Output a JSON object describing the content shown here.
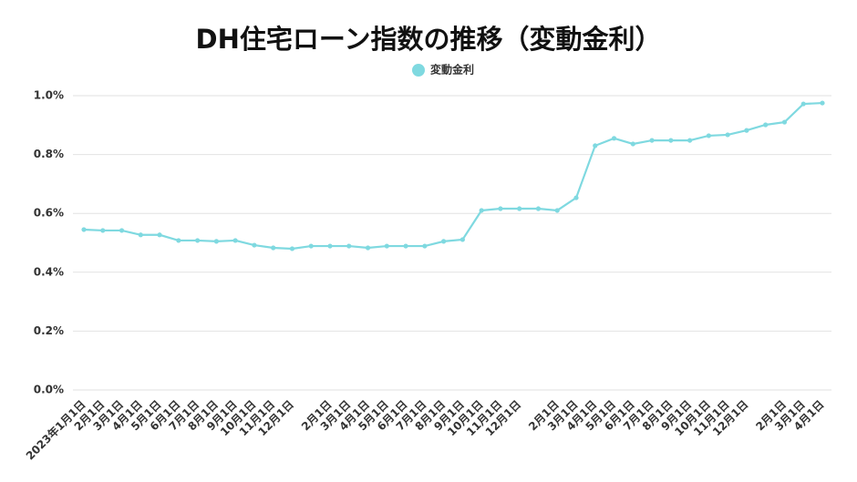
{
  "chart_data": {
    "type": "line",
    "title": "DH住宅ローン指数の推移（変動金利）",
    "categories": [
      "2023年1月1日",
      "2月1日",
      "3月1日",
      "4月1日",
      "5月1日",
      "6月1日",
      "7月1日",
      "8月1日",
      "9月1日",
      "10月1日",
      "11月1日",
      "12月1日",
      null,
      "2月1日",
      "3月1日",
      "4月1日",
      "5月1日",
      "6月1日",
      "7月1日",
      "8月1日",
      "9月1日",
      "10月1日",
      "11月1日",
      "12月1日",
      null,
      "2月1日",
      "3月1日",
      "4月1日",
      "5月1日",
      "6月1日",
      "7月1日",
      "8月1日",
      "9月1日",
      "10月1日",
      "11月1日",
      "12月1日",
      null,
      "2月1日",
      "3月1日",
      "4月1日"
    ],
    "series": [
      {
        "name": "変動金利",
        "color": "#7fd9e0",
        "values": [
          0.545,
          0.542,
          0.542,
          0.527,
          0.527,
          0.508,
          0.508,
          0.505,
          0.508,
          0.492,
          0.483,
          0.48,
          0.489,
          0.489,
          0.489,
          0.483,
          0.489,
          0.489,
          0.489,
          0.505,
          0.511,
          0.61,
          0.616,
          0.616,
          0.616,
          0.61,
          0.653,
          0.83,
          0.855,
          0.836,
          0.848,
          0.848,
          0.848,
          0.864,
          0.867,
          0.882,
          0.901,
          0.91,
          0.972,
          0.975
        ]
      }
    ],
    "ylim": [
      0,
      1.0
    ],
    "yticks": [
      {
        "value": 0,
        "label": "0.0%"
      },
      {
        "value": 0.2,
        "label": "0.2%"
      },
      {
        "value": 0.4,
        "label": "0.4%"
      },
      {
        "value": 0.6,
        "label": "0.6%"
      },
      {
        "value": 0.8,
        "label": "0.8%"
      },
      {
        "value": 1.0,
        "label": "1.0%"
      }
    ],
    "grid": true
  }
}
